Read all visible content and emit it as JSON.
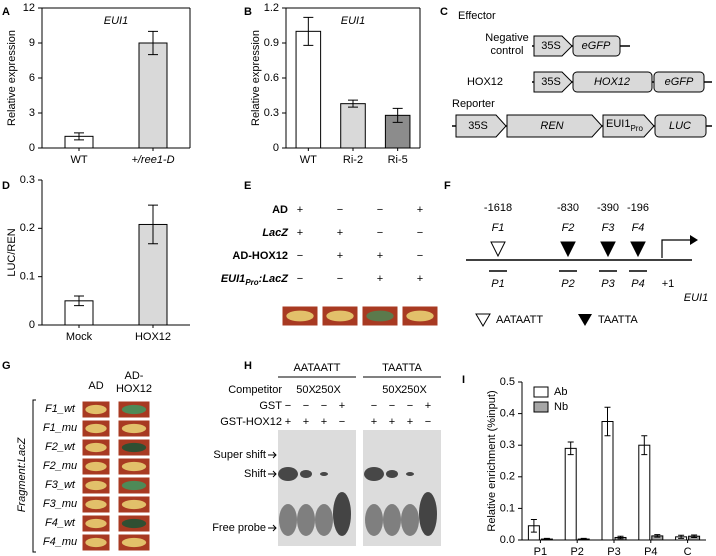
{
  "chart_data": [
    {
      "type": "bar",
      "label": "A",
      "title": "EUI1",
      "ylabel": "Relative expression",
      "categories": [
        "WT",
        "+/ree1-D"
      ],
      "values": [
        1.0,
        9.0
      ],
      "errors": [
        0.3,
        1.0
      ],
      "colors": [
        "#ffffff",
        "#d9d9d9"
      ],
      "ylim": [
        0,
        12
      ],
      "yticks": [
        0,
        3,
        6,
        9,
        12
      ],
      "box": true
    },
    {
      "type": "bar",
      "label": "B",
      "title": "EUI1",
      "ylabel": "Relative expression",
      "categories": [
        "WT",
        "Ri-2",
        "Ri-5"
      ],
      "values": [
        1.0,
        0.38,
        0.28
      ],
      "errors": [
        0.12,
        0.03,
        0.06
      ],
      "colors": [
        "#ffffff",
        "#d9d9d9",
        "#8c8c8c"
      ],
      "ylim": [
        0,
        1.2
      ],
      "yticks": [
        0,
        0.3,
        0.6,
        0.9,
        1.2
      ],
      "box": true
    },
    {
      "type": "bar",
      "label": "D",
      "ylabel": "LUC/REN",
      "categories": [
        "Mock",
        "HOX12"
      ],
      "values": [
        0.05,
        0.208
      ],
      "errors": [
        0.01,
        0.04
      ],
      "colors": [
        "#ffffff",
        "#d9d9d9"
      ],
      "ylim": [
        0,
        0.3
      ],
      "yticks": [
        0,
        0.1,
        0.2,
        0.3
      ],
      "box": false
    },
    {
      "type": "grouped_bar",
      "label": "I",
      "ylabel": "Relative enrichment (%input)",
      "categories": [
        "P1",
        "P2",
        "P3",
        "P4",
        "C"
      ],
      "series": [
        {
          "name": "Ab",
          "color": "#ffffff",
          "values": [
            0.045,
            0.29,
            0.375,
            0.3,
            0.01
          ],
          "errors": [
            0.02,
            0.02,
            0.045,
            0.03,
            0.005
          ]
        },
        {
          "name": "Nb",
          "color": "#a6a6a6",
          "values": [
            0.003,
            0.003,
            0.008,
            0.013,
            0.012
          ],
          "errors": [
            0.002,
            0.002,
            0.004,
            0.004,
            0.004
          ]
        }
      ],
      "ylim": [
        0,
        0.5
      ],
      "yticks": [
        {
          "value": 0,
          "label": "0.0"
        },
        0.1,
        0.2,
        0.3,
        0.4,
        0.5
      ],
      "legend": "upper left",
      "box": false
    }
  ],
  "panel_c": {
    "label": "C",
    "effector": "Effector",
    "negative_control": [
      "Negative",
      "control"
    ],
    "hox12_label": "HOX12",
    "promoter": "35S",
    "gfp": "eGFP",
    "hox12": "HOX12",
    "reporter": "Reporter",
    "ren": "REN",
    "eui1": "EUI1",
    "pro": "Pro",
    "luc": "LUC"
  },
  "panel_e": {
    "label": "E",
    "rows": [
      {
        "label": "AD",
        "signs": [
          "+",
          "−",
          "−",
          "+"
        ]
      },
      {
        "label": "LacZ",
        "italic": true,
        "signs": [
          "+",
          "+",
          "−",
          "−"
        ]
      },
      {
        "label": "AD-HOX12",
        "signs": [
          "−",
          "+",
          "+",
          "−"
        ]
      },
      {
        "label": "EUI1",
        "sub": "Pro",
        "suffix": ":LacZ",
        "italic": true,
        "signs": [
          "−",
          "−",
          "+",
          "+"
        ]
      }
    ]
  },
  "panel_f": {
    "label": "F",
    "sites": [
      {
        "position": "-1618",
        "name": "F1",
        "open": true
      },
      {
        "position": "-830",
        "name": "F2",
        "open": false
      },
      {
        "position": "-390",
        "name": "F3",
        "open": false
      },
      {
        "position": "-196",
        "name": "F4",
        "open": false
      }
    ],
    "probes": [
      "P1",
      "P2",
      "P3",
      "P4"
    ],
    "tss": "+1",
    "gene": "EUI1",
    "motifs": [
      "AATAATT",
      "TAATTA"
    ]
  },
  "panel_g": {
    "label": "G",
    "col_ad": "AD",
    "col_hox": [
      "AD-",
      "HOX12"
    ],
    "rows": [
      "F1_wt",
      "F1_mu",
      "F2_wt",
      "F2_mu",
      "F3_wt",
      "F3_mu",
      "F4_wt",
      "F4_mu"
    ],
    "ylabel": "Fragment:LacZ"
  },
  "panel_h": {
    "label": "H",
    "probes": [
      "AATAATT",
      "TAATTA"
    ],
    "competitor_label": "Competitor",
    "competitor": [
      "50X",
      "250X"
    ],
    "gst_label": "GST",
    "gst": [
      "−",
      "−",
      "−",
      "+"
    ],
    "hox_label": "GST-HOX12",
    "hox": [
      "+",
      "+",
      "+",
      "−"
    ],
    "bands": [
      "Super shift",
      "Shift",
      "Free probe"
    ]
  }
}
